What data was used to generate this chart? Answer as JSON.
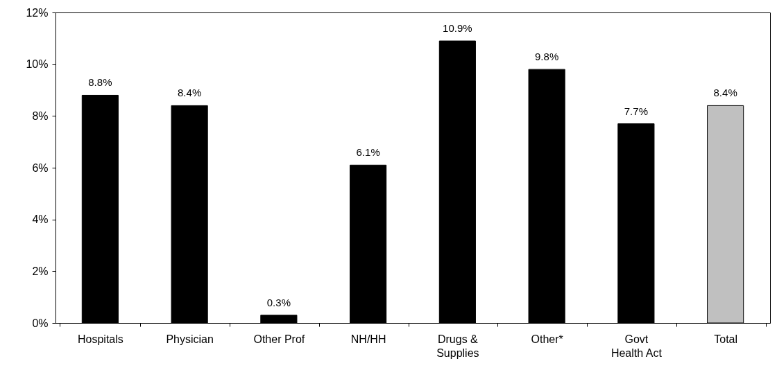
{
  "chart_data": {
    "type": "bar",
    "categories": [
      "Hospitals",
      "Physician",
      "Other Prof",
      "NH/HH",
      "Drugs &\nSupplies",
      "Other*",
      "Govt\nHealth Act",
      "Total"
    ],
    "values": [
      8.8,
      8.4,
      0.3,
      6.1,
      10.9,
      9.8,
      7.7,
      8.4
    ],
    "colors": [
      "#000000",
      "#000000",
      "#000000",
      "#000000",
      "#000000",
      "#000000",
      "#000000",
      "#c0c0c0"
    ],
    "value_labels": [
      "8.8%",
      "8.4%",
      "0.3%",
      "6.1%",
      "10.9%",
      "9.8%",
      "7.7%",
      "8.4%"
    ],
    "ylim": [
      0,
      12
    ],
    "yticks": [
      {
        "value": 0,
        "label": "0%"
      },
      {
        "value": 2,
        "label": "2%"
      },
      {
        "value": 4,
        "label": "4%"
      },
      {
        "value": 6,
        "label": "6%"
      },
      {
        "value": 8,
        "label": "8%"
      },
      {
        "value": 10,
        "label": "10%"
      },
      {
        "value": 12,
        "label": "12%"
      }
    ],
    "grid": false
  }
}
